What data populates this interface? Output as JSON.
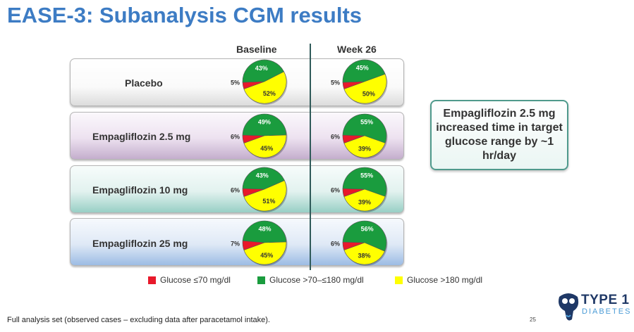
{
  "title": "EASE-3: Subanalysis CGM results",
  "columns": {
    "baseline": "Baseline",
    "week26": "Week 26"
  },
  "callout": "Empagliflozin 2.5 mg increased time in target glucose range by ~1 hr/day",
  "footnote": "Full analysis set (observed cases – excluding data after paracetamol intake).",
  "page_number": "25",
  "logo": {
    "line1": "TYPE 1",
    "line2": "DIABETES"
  },
  "legend": {
    "low": "Glucose ≤70 mg/dl",
    "mid": "Glucose >70–≤180 mg/dl",
    "high": "Glucose >180 mg/dl"
  },
  "colors": {
    "low": "#e8192b",
    "mid": "#1a9c3e",
    "high": "#ffff00",
    "title": "#3d7cc4"
  },
  "chart_data": {
    "type": "pie",
    "series_order": [
      "Glucose ≤70 mg/dl",
      "Glucose >70–≤180 mg/dl",
      "Glucose >180 mg/dl"
    ],
    "groups": [
      {
        "label": "Placebo",
        "baseline": {
          "low": 5,
          "mid": 43,
          "high": 52
        },
        "week26": {
          "low": 5,
          "mid": 45,
          "high": 50
        }
      },
      {
        "label": "Empagliflozin 2.5 mg",
        "baseline": {
          "low": 6,
          "mid": 49,
          "high": 45
        },
        "week26": {
          "low": 6,
          "mid": 55,
          "high": 39
        }
      },
      {
        "label": "Empagliflozin 10 mg",
        "baseline": {
          "low": 6,
          "mid": 43,
          "high": 51
        },
        "week26": {
          "low": 6,
          "mid": 55,
          "high": 39
        }
      },
      {
        "label": "Empagliflozin 25 mg",
        "baseline": {
          "low": 7,
          "mid": 48,
          "high": 45
        },
        "week26": {
          "low": 6,
          "mid": 56,
          "high": 38
        }
      }
    ]
  }
}
